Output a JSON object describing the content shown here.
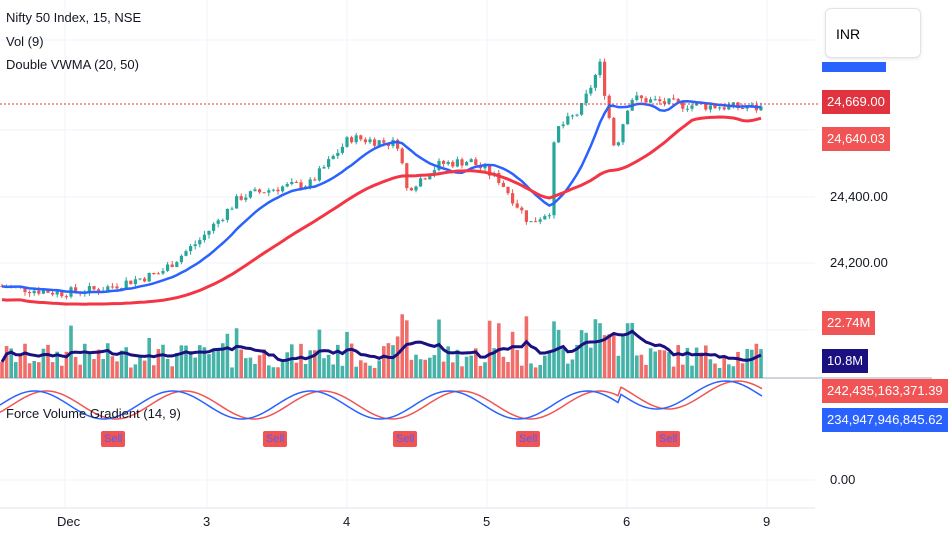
{
  "legend": {
    "symbol": "Nifty 50 Index, 15, NSE",
    "volume": "Vol (9)",
    "vwma": "Double VWMA (20, 50)",
    "fvg": "Force Volume Gradient (14, 9)"
  },
  "currency_button": "INR",
  "price_axis": {
    "ticks": [
      "24,400.00",
      "24,200.00"
    ],
    "last_price": "24,669.00",
    "vwma_slow": "24,640.03"
  },
  "volume_axis": {
    "volume": "22.74M",
    "volume_ma": "10.8M"
  },
  "fvg_axis": {
    "value_1": "242,435,163,371.39",
    "value_2": "234,947,946,845.62",
    "zero": "0.00"
  },
  "time_axis": [
    "Dec",
    "3",
    "4",
    "5",
    "6",
    "9"
  ],
  "signals": [
    "Sell",
    "Sell",
    "Sell",
    "Sell",
    "Sell"
  ],
  "colors": {
    "up": "#26a69a",
    "down": "#ef5350",
    "vwma_fast": "#2962ff",
    "vwma_slow": "#f23645",
    "vol_ma": "#1a1080",
    "fvg_a": "#2962ff",
    "fvg_b": "#f05454"
  }
}
